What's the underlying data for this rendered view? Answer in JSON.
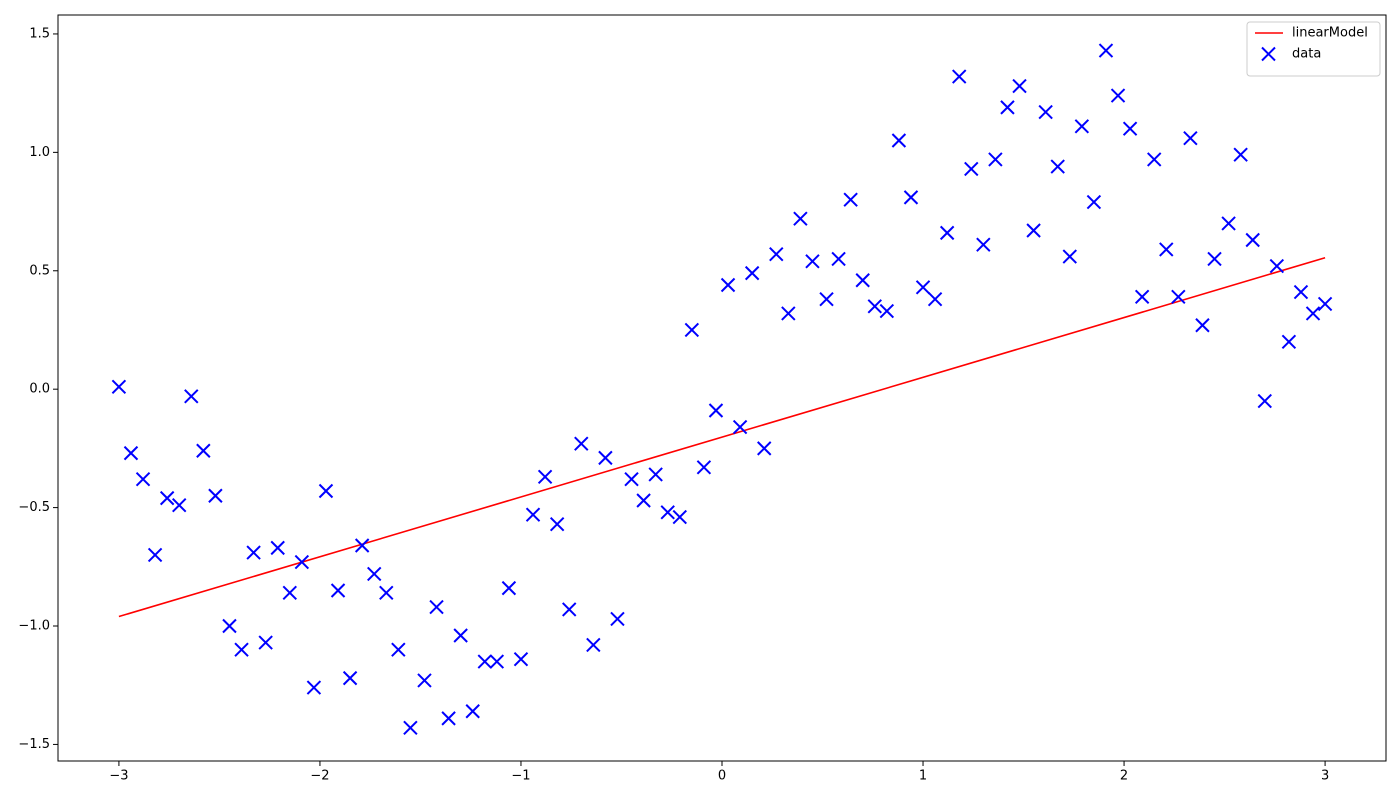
{
  "chart_data": {
    "type": "scatter",
    "xlim": [
      -3.303,
      3.303
    ],
    "ylim": [
      -1.57,
      1.58
    ],
    "xticks": [
      {
        "value": -3,
        "label": "−3"
      },
      {
        "value": -2,
        "label": "−2"
      },
      {
        "value": -1,
        "label": "−1"
      },
      0,
      1,
      2,
      3
    ],
    "yticks": [
      {
        "value": -1.5,
        "label": "−1.5"
      },
      {
        "value": -1,
        "label": "−1.0"
      },
      {
        "value": -0.5,
        "label": "−0.5"
      },
      {
        "value": 0,
        "label": "0.0"
      },
      0.5,
      {
        "value": 1,
        "label": "1.0"
      },
      1.5
    ],
    "legend": "upper right",
    "series": [
      {
        "name": "linearModel",
        "type": "line",
        "color": "#ff0000",
        "x": [
          -3,
          3
        ],
        "values": [
          -0.96,
          0.555
        ]
      },
      {
        "name": "data",
        "type": "scatter",
        "color": "#0000ff",
        "x": [
          -3.0,
          -2.94,
          -2.88,
          -2.82,
          -2.76,
          -2.7,
          -2.64,
          -2.58,
          -2.52,
          -2.45,
          -2.39,
          -2.33,
          -2.27,
          -2.21,
          -2.15,
          -2.09,
          -2.03,
          -1.97,
          -1.91,
          -1.85,
          -1.79,
          -1.73,
          -1.67,
          -1.61,
          -1.55,
          -1.48,
          -1.42,
          -1.36,
          -1.3,
          -1.24,
          -1.18,
          -1.12,
          -1.06,
          -1.0,
          -0.94,
          -0.88,
          -0.82,
          -0.76,
          -0.7,
          -0.64,
          -0.58,
          -0.52,
          -0.45,
          -0.39,
          -0.33,
          -0.27,
          -0.21,
          -0.15,
          -0.09,
          -0.03,
          0.03,
          0.09,
          0.15,
          0.21,
          0.27,
          0.33,
          0.39,
          0.45,
          0.52,
          0.58,
          0.64,
          0.7,
          0.76,
          0.82,
          0.88,
          0.94,
          1.0,
          1.06,
          1.12,
          1.18,
          1.24,
          1.3,
          1.36,
          1.42,
          1.48,
          1.55,
          1.61,
          1.67,
          1.73,
          1.79,
          1.85,
          1.91,
          1.97,
          2.03,
          2.09,
          2.15,
          2.21,
          2.27,
          2.33,
          2.39,
          2.45,
          2.52,
          2.58,
          2.64,
          2.7,
          2.76,
          2.82,
          2.88,
          2.94,
          3.0
        ],
        "values": [
          0.01,
          -0.27,
          -0.38,
          -0.7,
          -0.46,
          -0.49,
          -0.03,
          -0.26,
          -0.45,
          -1.0,
          -1.1,
          -0.69,
          -1.07,
          -0.67,
          -0.86,
          -0.73,
          -1.26,
          -0.43,
          -0.85,
          -1.22,
          -0.66,
          -0.78,
          -0.86,
          -1.1,
          -1.43,
          -1.23,
          -0.92,
          -1.39,
          -1.04,
          -1.36,
          -1.15,
          -1.15,
          -0.84,
          -1.14,
          -0.53,
          -0.37,
          -0.57,
          -0.93,
          -0.23,
          -1.08,
          -0.29,
          -0.97,
          -0.38,
          -0.47,
          -0.36,
          -0.52,
          -0.54,
          0.25,
          -0.33,
          -0.09,
          0.44,
          -0.16,
          0.49,
          -0.25,
          0.57,
          0.32,
          0.72,
          0.54,
          0.38,
          0.55,
          0.8,
          0.46,
          0.35,
          0.33,
          1.05,
          0.81,
          0.43,
          0.38,
          0.66,
          1.32,
          0.93,
          0.61,
          0.97,
          1.19,
          1.28,
          0.67,
          1.17,
          0.94,
          0.56,
          1.11,
          0.79,
          1.43,
          1.24,
          1.1,
          0.39,
          0.97,
          0.59,
          0.39,
          1.06,
          0.27,
          0.55,
          0.7,
          0.99,
          0.63,
          -0.05,
          0.52,
          0.2,
          0.41,
          0.32,
          0.36
        ]
      }
    ]
  }
}
